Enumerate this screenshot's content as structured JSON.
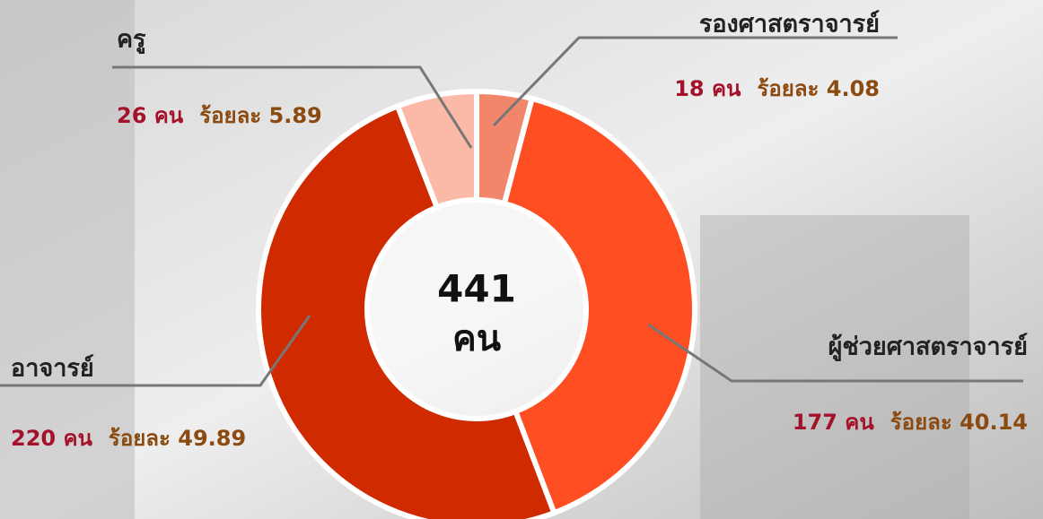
{
  "chart_data": {
    "type": "pie",
    "categories": [
      "รองศาสตราจารย์",
      "ผู้ช่วยศาสตราจารย์",
      "อาจารย์",
      "ครู"
    ],
    "values": [
      18,
      177,
      220,
      26
    ],
    "value_labels": [
      "18 คน",
      "177 คน",
      "220 คน",
      "26 คน"
    ],
    "percentages": [
      4.08,
      40.14,
      49.89,
      5.89
    ],
    "percentage_labels": [
      "ร้อยละ 4.08",
      "ร้อยละ 40.14",
      "ร้อยละ 49.89",
      "ร้อยละ 5.89"
    ],
    "colors": [
      "#f2866a",
      "#ff4e22",
      "#d02a00",
      "#fbbaa8"
    ],
    "donut": true,
    "total": 441,
    "center_unit": "คน"
  }
}
